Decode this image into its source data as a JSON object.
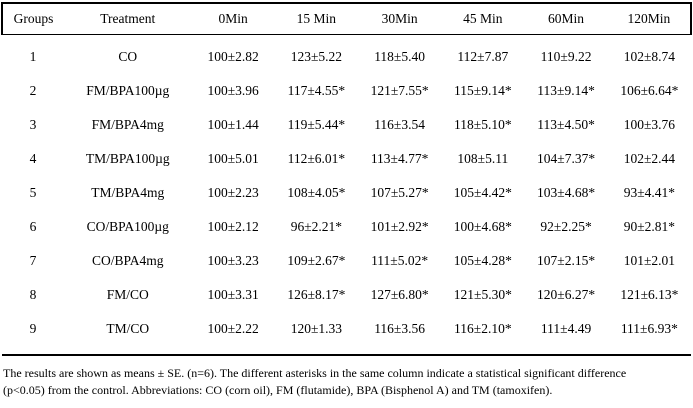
{
  "table": {
    "columns": [
      "Groups",
      "Treatment",
      "0Min",
      "15 Min",
      "30Min",
      "45 Min",
      "60Min",
      "120Min"
    ],
    "rows": [
      {
        "group": "1",
        "treatment": "CO",
        "values": [
          "100±2.82",
          "123±5.22",
          "118±5.40",
          "112±7.87",
          "110±9.22",
          "102±8.74"
        ]
      },
      {
        "group": "2",
        "treatment": "FM/BPA100µg",
        "values": [
          "100±3.96",
          "117±4.55*",
          "121±7.55*",
          "115±9.14*",
          "113±9.14*",
          "106±6.64*"
        ]
      },
      {
        "group": "3",
        "treatment": "FM/BPA4mg",
        "values": [
          "100±1.44",
          "119±5.44*",
          "116±3.54",
          "118±5.10*",
          "113±4.50*",
          "100±3.76"
        ]
      },
      {
        "group": "4",
        "treatment": "TM/BPA100µg",
        "values": [
          "100±5.01",
          "112±6.01*",
          "113±4.77*",
          "108±5.11",
          "104±7.37*",
          "102±2.44"
        ]
      },
      {
        "group": "5",
        "treatment": "TM/BPA4mg",
        "values": [
          "100±2.23",
          "108±4.05*",
          "107±5.27*",
          "105±4.42*",
          "103±4.68*",
          "93±4.41*"
        ]
      },
      {
        "group": "6",
        "treatment": "CO/BPA100µg",
        "values": [
          "100±2.12",
          "96±2.21*",
          "101±2.92*",
          "100±4.68*",
          "92±2.25*",
          "90±2.81*"
        ]
      },
      {
        "group": "7",
        "treatment": "CO/BPA4mg",
        "values": [
          "100±3.23",
          "109±2.67*",
          "111±5.02*",
          "105±4.28*",
          "107±2.15*",
          "101±2.01"
        ]
      },
      {
        "group": "8",
        "treatment": "FM/CO",
        "values": [
          "100±3.31",
          "126±8.17*",
          "127±6.80*",
          "121±5.30*",
          "120±6.27*",
          "121±6.13*"
        ]
      },
      {
        "group": "9",
        "treatment": "TM/CO",
        "values": [
          "100±2.22",
          "120±1.33",
          "116±3.56",
          "116±2.10*",
          "111±4.49",
          "111±6.93*"
        ]
      }
    ]
  },
  "footnote": {
    "line1": "The results are shown as means ± SE.  (n=6).  The different asterisks in the same column indicate a statistical significant difference",
    "line2": "(p<0.05) from the control. Abbreviations: CO (corn oil),  FM (flutamide), BPA (Bisphenol A) and TM (tamoxifen)."
  },
  "chart_data": {
    "type": "table",
    "title": "",
    "columns": [
      "Groups",
      "Treatment",
      "0Min",
      "15 Min",
      "30Min",
      "45 Min",
      "60Min",
      "120Min"
    ],
    "rows": [
      [
        "1",
        "CO",
        "100±2.82",
        "123±5.22",
        "118±5.40",
        "112±7.87",
        "110±9.22",
        "102±8.74"
      ],
      [
        "2",
        "FM/BPA100µg",
        "100±3.96",
        "117±4.55*",
        "121±7.55*",
        "115±9.14*",
        "113±9.14*",
        "106±6.64*"
      ],
      [
        "3",
        "FM/BPA4mg",
        "100±1.44",
        "119±5.44*",
        "116±3.54",
        "118±5.10*",
        "113±4.50*",
        "100±3.76"
      ],
      [
        "4",
        "TM/BPA100µg",
        "100±5.01",
        "112±6.01*",
        "113±4.77*",
        "108±5.11",
        "104±7.37*",
        "102±2.44"
      ],
      [
        "5",
        "TM/BPA4mg",
        "100±2.23",
        "108±4.05*",
        "107±5.27*",
        "105±4.42*",
        "103±4.68*",
        "93±4.41*"
      ],
      [
        "6",
        "CO/BPA100µg",
        "100±2.12",
        "96±2.21*",
        "101±2.92*",
        "100±4.68*",
        "92±2.25*",
        "90±2.81*"
      ],
      [
        "7",
        "CO/BPA4mg",
        "100±3.23",
        "109±2.67*",
        "111±5.02*",
        "105±4.28*",
        "107±2.15*",
        "101±2.01"
      ],
      [
        "8",
        "FM/CO",
        "100±3.31",
        "126±8.17*",
        "127±6.80*",
        "121±5.30*",
        "120±6.27*",
        "121±6.13*"
      ],
      [
        "9",
        "TM/CO",
        "100±2.22",
        "120±1.33",
        "116±3.56",
        "116±2.10*",
        "111±4.49",
        "111±6.93*"
      ]
    ]
  }
}
